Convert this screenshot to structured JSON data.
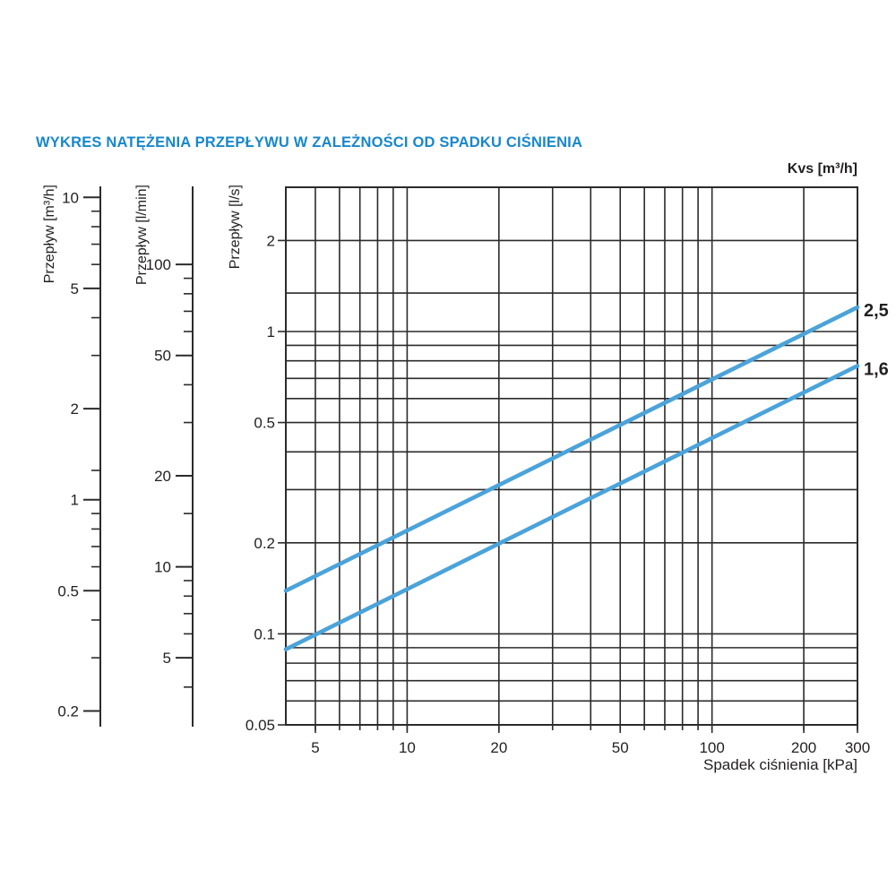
{
  "title": "WYKRES NATĘŻENIA PRZEPŁYWU W ZALEŻNOŚCI OD SPADKU CIŚNIENIA",
  "colors": {
    "accent_blue": "#1787cc",
    "line_blue": "#4ba3d9",
    "grid": "#2b2b2b"
  },
  "chart_data": {
    "type": "line",
    "scale": "log-log",
    "title": "WYKRES NATĘŻENIA PRZEPŁYWU W ZALEŻNOŚCI OD SPADKU CIŚNIENIA",
    "series_label_header": "Kvs [m³/h]",
    "x_axis": {
      "label": "Spadek ciśnienia [kPa]",
      "min": 4,
      "max": 300,
      "labeled_ticks": [
        5,
        10,
        20,
        50,
        100,
        200,
        300
      ],
      "gridlines": [
        5,
        6,
        7,
        8,
        9,
        10,
        20,
        30,
        40,
        50,
        60,
        70,
        80,
        90,
        100,
        200,
        300
      ]
    },
    "y_axis": {
      "label": "Przepływ [l/s]",
      "min": 0.05,
      "max": 3,
      "labeled_ticks": [
        2,
        1,
        0.5,
        0.2,
        0.1,
        0.05
      ],
      "gridlines": [
        2,
        1.34,
        1,
        0.9,
        0.8,
        0.7,
        0.6,
        0.5,
        0.4,
        0.3,
        0.2,
        0.1,
        0.09,
        0.08,
        0.07,
        0.06
      ]
    },
    "aux_axes": [
      {
        "label": "Przepływ [m³/h]",
        "to_l_per_s": 0.27778,
        "labeled_ticks": [
          10,
          5,
          2,
          1,
          0.5,
          0.2
        ],
        "minor_ticks": [
          9,
          8,
          7,
          6,
          4,
          3,
          1.25,
          0.9,
          0.8,
          0.7,
          0.6,
          0.4,
          0.3
        ]
      },
      {
        "label": "Przepływ [l/min]",
        "to_l_per_s": 0.016667,
        "labeled_ticks": [
          100,
          50,
          20,
          10,
          5
        ],
        "minor_ticks": [
          90,
          80,
          70,
          60,
          40,
          30,
          15,
          9,
          8,
          7,
          6,
          4
        ]
      }
    ],
    "series": [
      {
        "name": "2,5",
        "kvs_m3h": 2.5,
        "points_kpa_ls": [
          [
            4,
            0.1389
          ],
          [
            300,
            1.2028
          ]
        ]
      },
      {
        "name": "1,6",
        "kvs_m3h": 1.6,
        "points_kpa_ls": [
          [
            4,
            0.0889
          ],
          [
            300,
            0.7698
          ]
        ]
      }
    ]
  }
}
